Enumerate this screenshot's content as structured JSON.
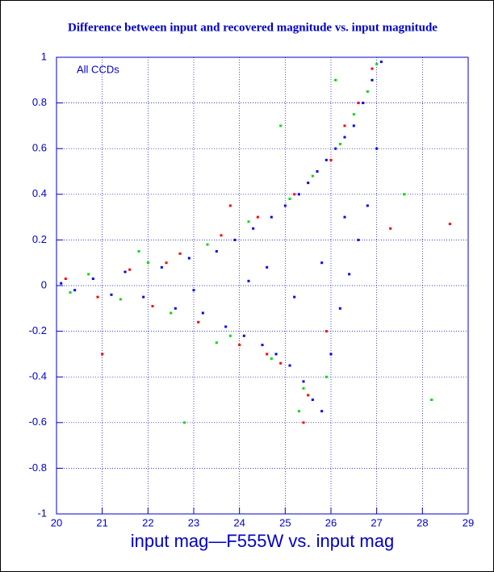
{
  "chart_data": {
    "type": "scatter",
    "title": "Difference between input and recovered magnitude vs. input magnitude",
    "annotation": "All CCDs",
    "x_label": "input mag—F555W vs. input mag",
    "xlim": [
      20,
      29
    ],
    "xticks": [
      20,
      21,
      22,
      23,
      24,
      25,
      26,
      27,
      28,
      29
    ],
    "ylim": [
      -1,
      1
    ],
    "yticks": [
      -1,
      -0.8,
      -0.6,
      -0.4,
      -0.2,
      0,
      0.2,
      0.4,
      0.6,
      0.8,
      1
    ],
    "grid": true,
    "series": [
      {
        "color": "#ff0000",
        "x": [
          20.2,
          20.9,
          21.6,
          22.1,
          22.7,
          23.1,
          23.6,
          24.0,
          24.4,
          24.9,
          25.2,
          25.5,
          25.7,
          26.0,
          26.3,
          26.6,
          26.9,
          22.4,
          24.6,
          25.9,
          27.3,
          28.6,
          21.0,
          23.8,
          25.4
        ],
        "values": [
          0.03,
          -0.05,
          0.07,
          -0.09,
          0.14,
          -0.16,
          0.22,
          -0.26,
          0.3,
          -0.34,
          0.4,
          -0.48,
          0.5,
          0.55,
          0.7,
          0.8,
          0.95,
          0.1,
          -0.3,
          -0.2,
          0.25,
          0.27,
          -0.3,
          0.35,
          -0.6
        ]
      },
      {
        "color": "#00dd00",
        "x": [
          20.3,
          20.7,
          21.4,
          22.0,
          22.5,
          23.3,
          23.8,
          24.2,
          24.7,
          25.1,
          25.4,
          25.6,
          25.9,
          26.2,
          26.5,
          26.8,
          27.0,
          21.8,
          23.5,
          25.3,
          27.6,
          28.2,
          24.9,
          26.1,
          22.8
        ],
        "values": [
          -0.03,
          0.05,
          -0.06,
          0.1,
          -0.12,
          0.18,
          -0.22,
          0.28,
          -0.32,
          0.38,
          -0.45,
          0.48,
          -0.4,
          0.62,
          0.75,
          0.85,
          0.97,
          0.15,
          -0.25,
          -0.55,
          0.4,
          -0.5,
          0.7,
          0.9,
          -0.6
        ]
      },
      {
        "color": "#0000ff",
        "x": [
          20.1,
          20.4,
          20.8,
          21.2,
          21.5,
          21.9,
          22.3,
          22.6,
          22.9,
          23.2,
          23.5,
          23.7,
          23.9,
          24.1,
          24.3,
          24.5,
          24.7,
          24.8,
          25.0,
          25.1,
          25.3,
          25.4,
          25.5,
          25.6,
          25.7,
          25.8,
          25.9,
          26.0,
          26.1,
          26.2,
          26.3,
          26.4,
          26.5,
          26.6,
          26.7,
          26.8,
          26.9,
          27.0,
          24.2,
          25.2,
          25.8,
          26.3,
          27.1,
          23.0,
          24.6
        ],
        "values": [
          0.01,
          -0.02,
          0.03,
          -0.04,
          0.06,
          -0.05,
          0.08,
          -0.1,
          0.12,
          -0.12,
          0.15,
          -0.18,
          0.2,
          -0.22,
          0.25,
          -0.26,
          0.3,
          -0.3,
          0.35,
          -0.35,
          0.4,
          -0.42,
          0.45,
          -0.5,
          0.5,
          -0.55,
          0.55,
          -0.3,
          0.6,
          -0.1,
          0.65,
          0.05,
          0.7,
          0.2,
          0.8,
          0.35,
          0.9,
          0.6,
          0.02,
          -0.05,
          0.1,
          0.3,
          0.98,
          -0.02,
          0.08
        ]
      }
    ]
  }
}
